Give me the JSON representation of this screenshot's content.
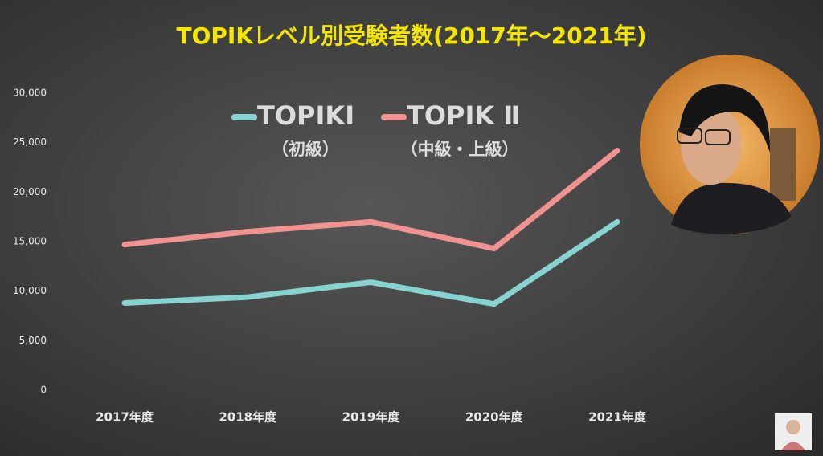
{
  "chart_data": {
    "type": "line",
    "title": "TOPIKレベル別受験者数(2017年～2021年)",
    "categories": [
      "2017年度",
      "2018年度",
      "2019年度",
      "2020年度",
      "2021年度"
    ],
    "series": [
      {
        "name": "TOPIKI",
        "legend_sublabel": "（初級）",
        "color": "#86d3d2",
        "values": [
          8800,
          9400,
          10900,
          8700,
          17000
        ]
      },
      {
        "name": "TOPIK Ⅱ",
        "legend_sublabel": "（中級・上級）",
        "color": "#f09290",
        "values": [
          14700,
          16000,
          17000,
          14300,
          24200
        ]
      }
    ],
    "ylim": [
      0,
      30000
    ],
    "yticks": [
      0,
      {
        "value": 5000,
        "label": "5,000"
      },
      {
        "value": 10000,
        "label": "10,000"
      },
      {
        "value": 15000,
        "label": "15,000"
      },
      {
        "value": 20000,
        "label": "20,000"
      },
      {
        "value": 25000,
        "label": "25,000"
      },
      {
        "value": 30000,
        "label": "30,000"
      }
    ],
    "grid": false
  }
}
